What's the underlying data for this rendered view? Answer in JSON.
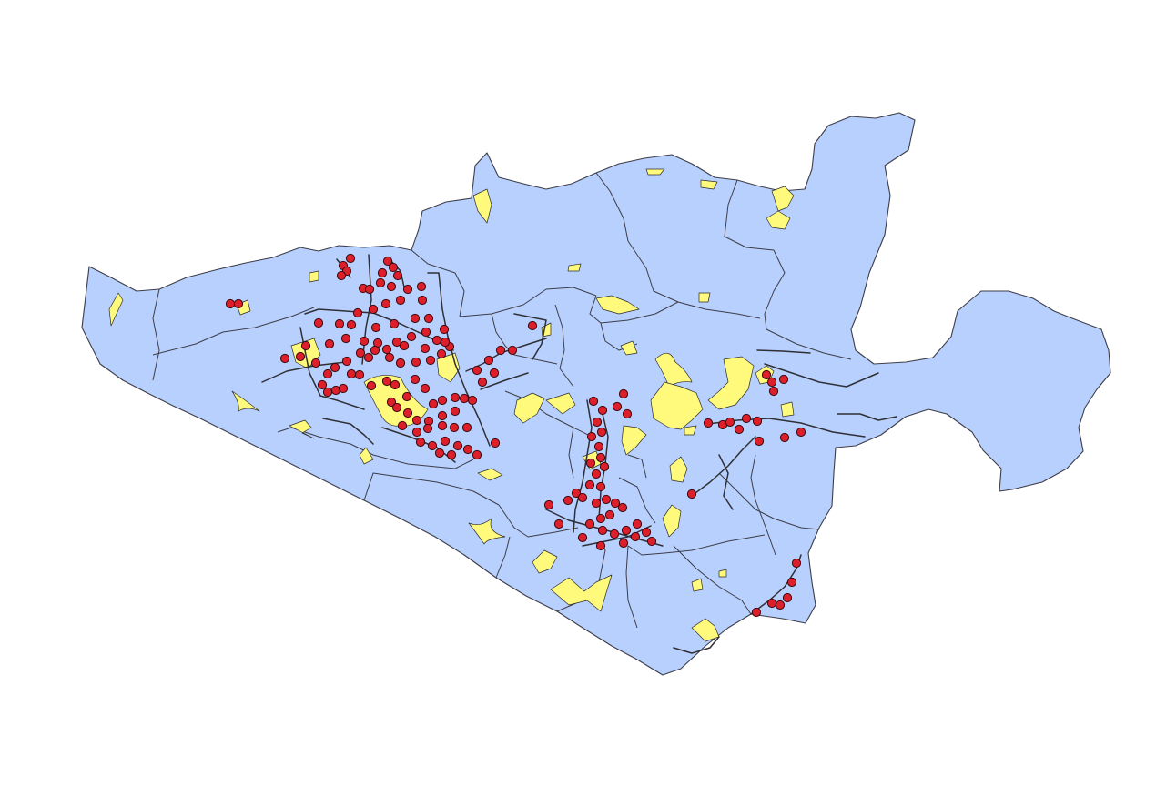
{
  "map": {
    "background_color": "#ffffff",
    "layers": [
      {
        "id": "admin-areas",
        "geometry": "polygon",
        "fill_color": "#b8d0fe",
        "stroke_color": "#3d3d47"
      },
      {
        "id": "land-patches",
        "geometry": "polygon",
        "fill_color": "#fff97c",
        "stroke_color": "#2c2c2c"
      },
      {
        "id": "road-network",
        "geometry": "line",
        "stroke_color": "#2f2f35"
      },
      {
        "id": "point-features",
        "geometry": "point",
        "fill_color": "#dc1f2b",
        "stroke_color": "#3a0a0d",
        "approx_count": 160
      }
    ]
  }
}
